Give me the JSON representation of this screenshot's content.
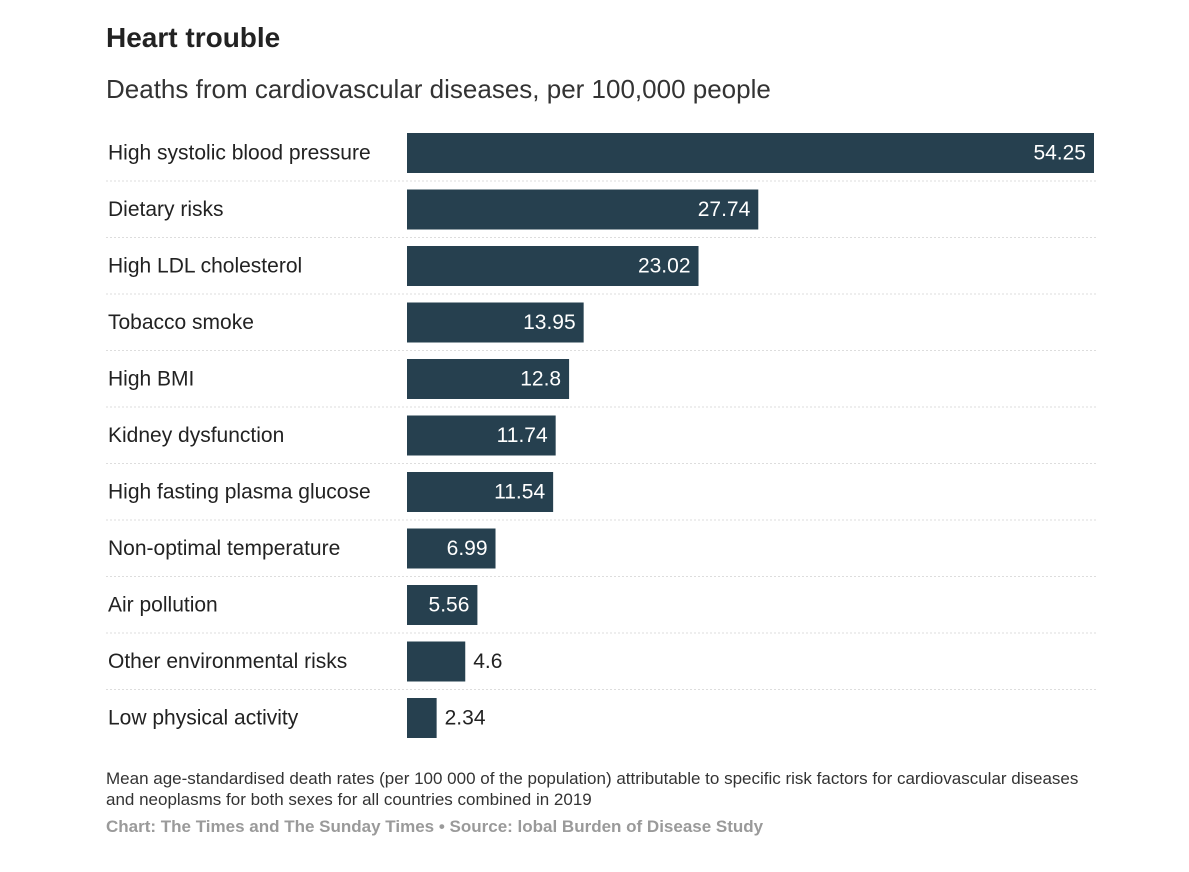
{
  "header": {
    "title": "Heart trouble",
    "subtitle": "Deaths from cardiovascular diseases, per 100,000 people"
  },
  "chart_data": {
    "type": "bar",
    "orientation": "horizontal",
    "title": "Heart trouble",
    "subtitle": "Deaths from cardiovascular diseases, per 100,000 people",
    "categories": [
      "High systolic blood pressure",
      "Dietary risks",
      "High LDL cholesterol",
      "Tobacco smoke",
      "High BMI",
      "Kidney dysfunction",
      "High fasting plasma glucose",
      "Non-optimal temperature",
      "Air pollution",
      "Other environmental risks",
      "Low physical activity"
    ],
    "values": [
      54.25,
      27.74,
      23.02,
      13.95,
      12.8,
      11.74,
      11.54,
      6.99,
      5.56,
      4.6,
      2.34
    ],
    "value_labels": [
      "54.25",
      "27.74",
      "23.02",
      "13.95",
      "12.8",
      "11.74",
      "11.54",
      "6.99",
      "5.56",
      "4.6",
      "2.34"
    ],
    "xlim": [
      0,
      54.25
    ],
    "grid": false,
    "legend": "none",
    "bar_color": "#26404f",
    "label_inside_color": "#ffffff",
    "label_outside_color": "#222222",
    "separator_color": "#dddddd"
  },
  "footer": {
    "note": "Mean age-standardised death rates (per 100 000 of the population) attributable to specific risk factors for cardiovascular diseases and neoplasms for both sexes for all countries combined in 2019",
    "source": "Chart: The Times and The Sunday Times • Source: lobal Burden of Disease Study"
  }
}
